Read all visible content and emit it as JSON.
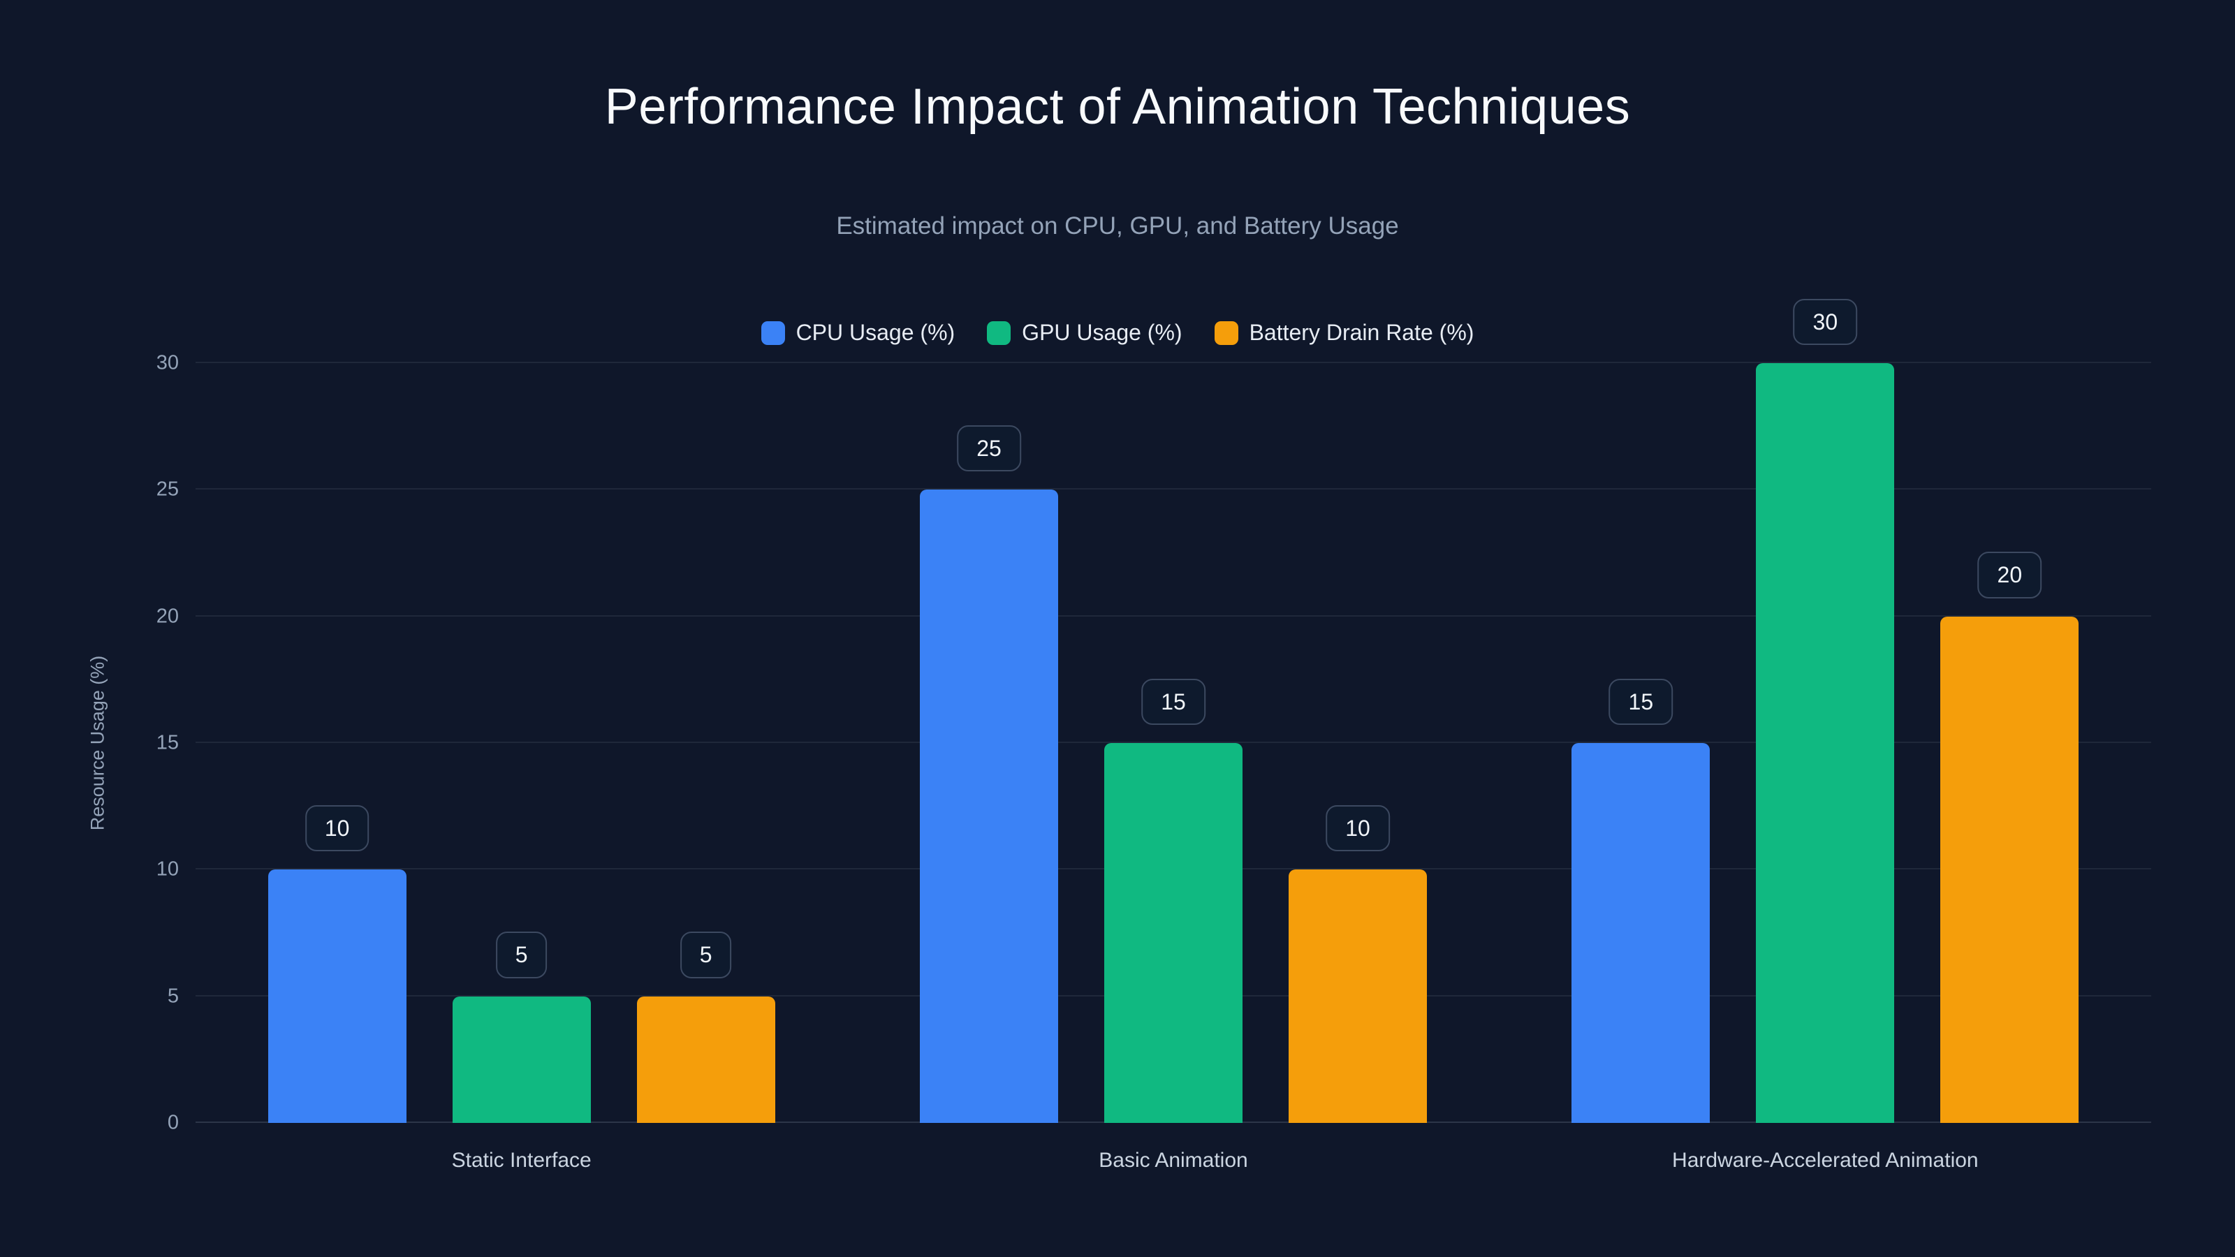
{
  "page": {
    "background": "#0f172a"
  },
  "chart_data": {
    "type": "bar",
    "title": "Performance Impact of Animation Techniques",
    "subtitle": "Estimated impact on CPU, GPU, and Battery Usage",
    "ylabel": "Resource Usage (%)",
    "categories": [
      "Static Interface",
      "Basic Animation",
      "Hardware-Accelerated Animation"
    ],
    "series": [
      {
        "name": "CPU Usage (%)",
        "color": "#3b82f6",
        "values": [
          10,
          25,
          15
        ]
      },
      {
        "name": "GPU Usage (%)",
        "color": "#10b981",
        "values": [
          5,
          15,
          30
        ]
      },
      {
        "name": "Battery Drain Rate (%)",
        "color": "#f59e0b",
        "values": [
          5,
          10,
          20
        ]
      }
    ],
    "ylim": [
      0,
      30
    ],
    "yticks": [
      0,
      5,
      10,
      15,
      20,
      25,
      30
    ],
    "grid": true,
    "legend_position": "top",
    "value_labels": true
  }
}
